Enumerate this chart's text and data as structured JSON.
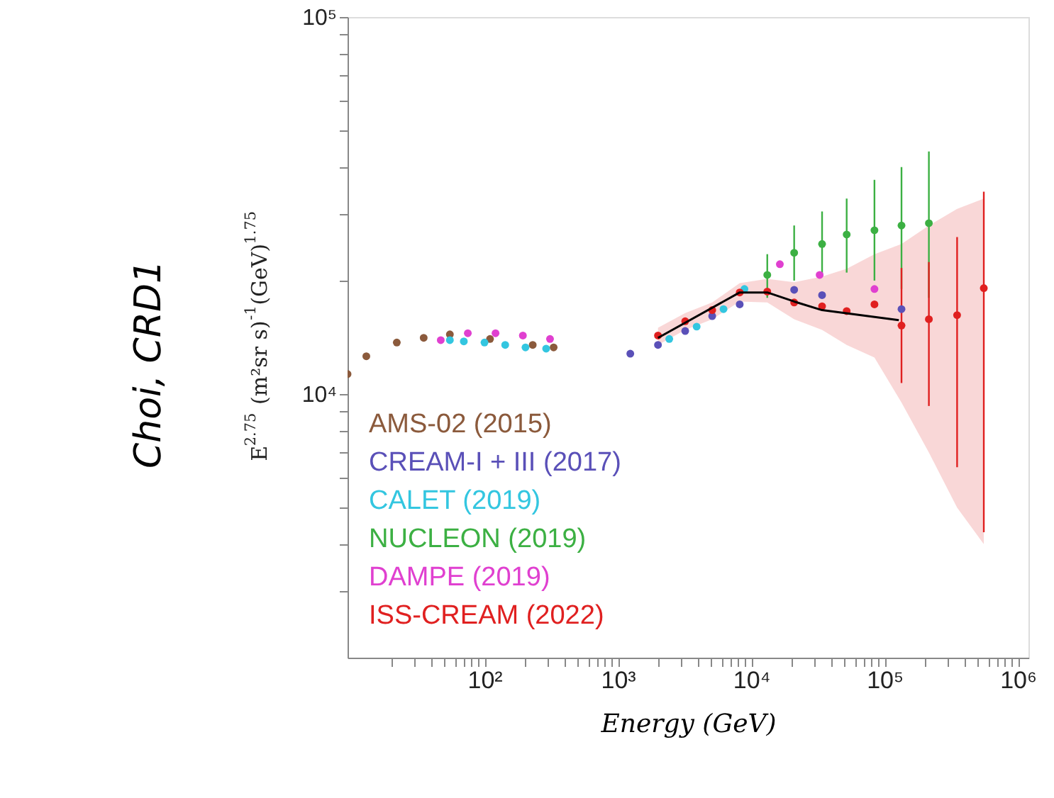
{
  "chart_data": {
    "type": "scatter",
    "xlabel": "Energy (GeV)",
    "ylabel": "E$^{2.75}$ (m²sr s)$^{-1}$(GeV)$^{1.75}$",
    "annotations": [
      "Choi, CRD1"
    ],
    "log": "xy",
    "grid": false,
    "legend": "bottom left",
    "marker": "circle",
    "xlim": [
      9.4,
      1200000
    ],
    "ylim": [
      2000,
      100000
    ],
    "xticks": [
      {
        "value": 20,
        "label": null
      },
      {
        "value": 30,
        "label": null
      },
      {
        "value": 40,
        "label": null
      },
      {
        "value": 50,
        "label": null
      },
      {
        "value": 60,
        "label": null
      },
      {
        "value": 70,
        "label": null
      },
      {
        "value": 80,
        "label": null
      },
      {
        "value": 90,
        "label": null
      },
      {
        "value": 100,
        "label": "10²"
      },
      {
        "value": 200,
        "label": null
      },
      {
        "value": 300,
        "label": null
      },
      {
        "value": 400,
        "label": null
      },
      {
        "value": 500,
        "label": null
      },
      {
        "value": 600,
        "label": null
      },
      {
        "value": 700,
        "label": null
      },
      {
        "value": 800,
        "label": null
      },
      {
        "value": 900,
        "label": null
      },
      {
        "value": 1000,
        "label": "10³"
      },
      {
        "value": 2000,
        "label": null
      },
      {
        "value": 3000,
        "label": null
      },
      {
        "value": 4000,
        "label": null
      },
      {
        "value": 5000,
        "label": null
      },
      {
        "value": 6000,
        "label": null
      },
      {
        "value": 7000,
        "label": null
      },
      {
        "value": 8000,
        "label": null
      },
      {
        "value": 9000,
        "label": null
      },
      {
        "value": 10000,
        "label": "10⁴"
      },
      {
        "value": 20000,
        "label": null
      },
      {
        "value": 30000,
        "label": null
      },
      {
        "value": 40000,
        "label": null
      },
      {
        "value": 50000,
        "label": null
      },
      {
        "value": 60000,
        "label": null
      },
      {
        "value": 70000,
        "label": null
      },
      {
        "value": 80000,
        "label": null
      },
      {
        "value": 90000,
        "label": null
      },
      {
        "value": 100000,
        "label": "10⁵"
      },
      {
        "value": 200000,
        "label": null
      },
      {
        "value": 300000,
        "label": null
      },
      {
        "value": 400000,
        "label": null
      },
      {
        "value": 500000,
        "label": null
      },
      {
        "value": 600000,
        "label": null
      },
      {
        "value": 700000,
        "label": null
      },
      {
        "value": 800000,
        "label": null
      },
      {
        "value": 900000,
        "label": null
      },
      {
        "value": 1000000,
        "label": "10⁶"
      }
    ],
    "yticks": [
      {
        "value": 3000,
        "label": null
      },
      {
        "value": 4000,
        "label": null
      },
      {
        "value": 5000,
        "label": null
      },
      {
        "value": 6000,
        "label": null
      },
      {
        "value": 7000,
        "label": null
      },
      {
        "value": 8000,
        "label": null
      },
      {
        "value": 9000,
        "label": null
      },
      {
        "value": 10000,
        "label": "10⁴"
      },
      {
        "value": 20000,
        "label": null
      },
      {
        "value": 30000,
        "label": null
      },
      {
        "value": 40000,
        "label": null
      },
      {
        "value": 50000,
        "label": null
      },
      {
        "value": 60000,
        "label": null
      },
      {
        "value": 70000,
        "label": null
      },
      {
        "value": 80000,
        "label": null
      },
      {
        "value": 90000,
        "label": null
      },
      {
        "value": 100000,
        "label": "10⁵"
      }
    ],
    "series": [
      {
        "name": "AMS-02 (2015)",
        "color": "#8b5a3c",
        "x": [
          9.4,
          13,
          22,
          35,
          55,
          110,
          230,
          330
        ],
        "values": [
          11300,
          12600,
          13700,
          14100,
          14400,
          14000,
          13500,
          13300
        ]
      },
      {
        "name": "CREAM-I + III (2017)",
        "color": "#5a50b8",
        "x": [
          1240,
          2000,
          3200,
          5100,
          8200,
          21000,
          34000,
          134000
        ],
        "values": [
          12800,
          13500,
          14700,
          16100,
          17300,
          18900,
          18300,
          16800
        ]
      },
      {
        "name": "CALET (2019)",
        "color": "#33c6e0",
        "x": [
          55,
          70,
          100,
          143,
          203,
          290,
          2430,
          3900,
          6200,
          8900
        ],
        "values": [
          13900,
          13800,
          13700,
          13500,
          13300,
          13200,
          14000,
          15100,
          16800,
          19000
        ]
      },
      {
        "name": "NUCLEON (2019)",
        "color": "#3cb043",
        "x": [
          13200,
          21000,
          34000,
          52000,
          84000,
          134000,
          215000
        ],
        "values": [
          20700,
          23700,
          25000,
          26500,
          27200,
          28000,
          28400
        ],
        "errors": [
          [
            18000,
            23500
          ],
          [
            20000,
            28000
          ],
          [
            20500,
            30500
          ],
          [
            21000,
            33000
          ],
          [
            20000,
            37000
          ],
          [
            19000,
            40000
          ],
          [
            18000,
            44000
          ]
        ]
      },
      {
        "name": "DAMPE (2019)",
        "color": "#e040d0",
        "x": [
          47,
          75,
          121,
          194,
          310,
          16400,
          32600,
          84000
        ],
        "values": [
          13900,
          14500,
          14500,
          14300,
          14000,
          22100,
          20700,
          19000
        ]
      },
      {
        "name": "ISS-CREAM (2022)",
        "color": "#e02020",
        "x": [
          2000,
          3200,
          5100,
          8200,
          13200,
          21000,
          34000,
          52000,
          84000,
          134000,
          215000,
          350000,
          555000
        ],
        "values": [
          14300,
          15600,
          16700,
          18600,
          18700,
          17500,
          17100,
          16600,
          17300,
          15200,
          15800,
          16200,
          19100
        ],
        "errors": [
          null,
          null,
          null,
          null,
          null,
          null,
          null,
          null,
          null,
          [
            10700,
            21600
          ],
          [
            9300,
            22400
          ],
          [
            6400,
            26100
          ],
          [
            4300,
            34400
          ]
        ],
        "lower": [
          13500,
          14800,
          15800,
          17600,
          17500,
          15800,
          14800,
          13500,
          12500,
          9500,
          7000,
          5000,
          4000
        ],
        "upper": [
          15000,
          16400,
          17500,
          19700,
          20200,
          19800,
          20500,
          21500,
          23500,
          25000,
          28000,
          31000,
          33000
        ]
      },
      {
        "type": "line",
        "marker": "none",
        "line_style": "solid",
        "color": "#000000",
        "x": [
          2000,
          8200,
          13200,
          21000,
          34000,
          128000
        ],
        "values": [
          14100,
          18600,
          18600,
          17600,
          16700,
          15700
        ]
      }
    ]
  }
}
